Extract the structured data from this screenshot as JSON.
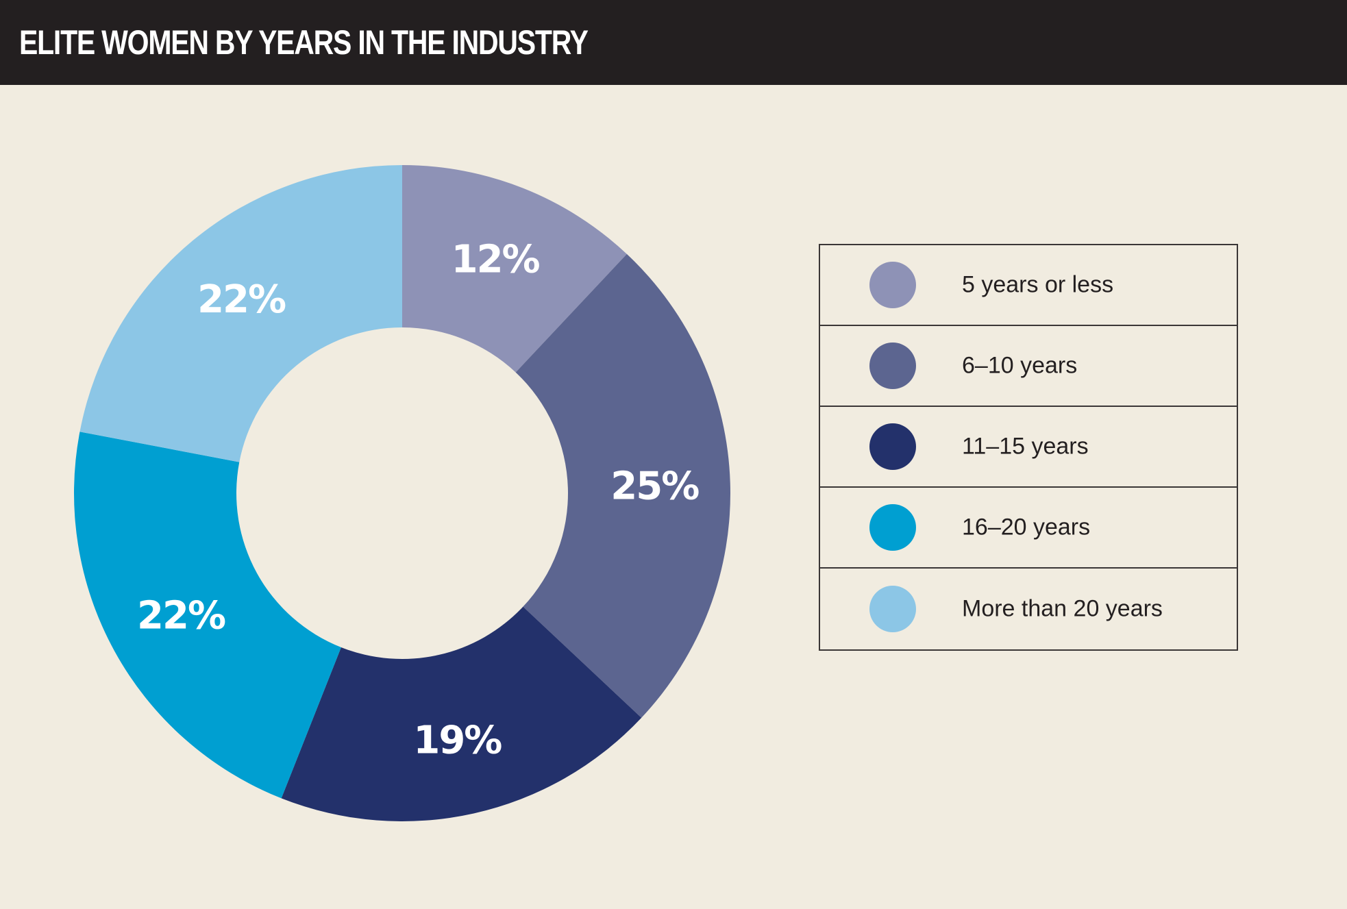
{
  "header": {
    "title": "ELITE WOMEN BY YEARS IN THE INDUSTRY"
  },
  "chart_data": {
    "type": "pie",
    "variant": "donut",
    "title": "ELITE WOMEN BY YEARS IN THE INDUSTRY",
    "categories": [
      "5 years or less",
      "6–10 years",
      "11–15 years",
      "16–20 years",
      "More than 20 years"
    ],
    "values": [
      12,
      25,
      19,
      22,
      22
    ],
    "labels": [
      "12%",
      "25%",
      "19%",
      "22%",
      "22%"
    ],
    "colors": [
      "#8e92b6",
      "#5c6590",
      "#23316b",
      "#009fd1",
      "#8cc6e6"
    ],
    "start": "top",
    "direction": "clockwise",
    "legend": "right"
  }
}
